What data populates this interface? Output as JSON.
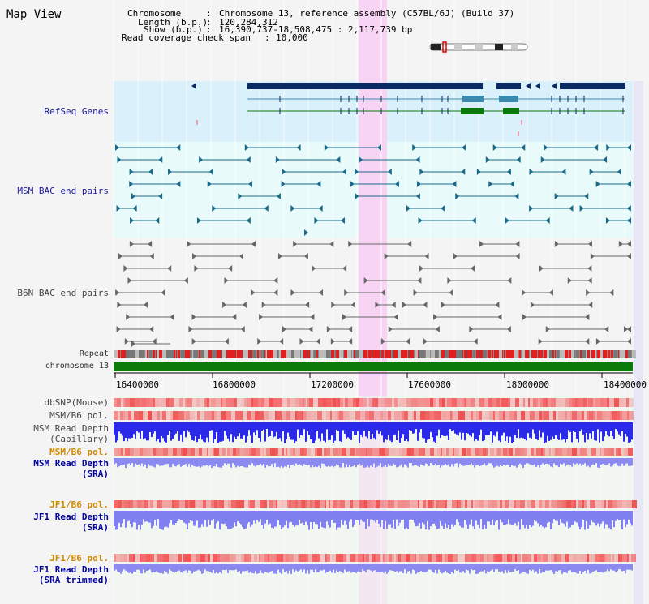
{
  "page_title": "Map View",
  "info": {
    "chromosome_key": "Chromosome",
    "chromosome_val": "Chromosome 13, reference assembly (C57BL/6J) (Build 37)",
    "length_key": "Length (b.p.)",
    "length_val": "120,284,312",
    "show_key": "Show (b.p.)",
    "show_val": "16,390,737-18,508,475 : 2,117,739 bp",
    "span_key": "Read coverage check span",
    "span_val": "10,000"
  },
  "tracks": {
    "refseq": "RefSeq Genes",
    "msm_bac": "MSM BAC end pairs",
    "b6n_bac": "B6N BAC end pairs",
    "repeat": "Repeat",
    "chromosome": "chromosome 13",
    "dbsnp": "dbSNP(Mouse)",
    "msm_b6_pol_1": "MSM/B6 pol.",
    "msm_depth_cap_1": "MSM Read Depth",
    "msm_depth_cap_2": "(Capillary)",
    "msm_b6_pol_2": "MSM/B6 pol.",
    "msm_depth_sra_1": "MSM Read Depth",
    "msm_depth_sra_2": "(SRA)",
    "jf1_b6_pol_1": "JF1/B6 pol.",
    "jf1_depth_sra_1": "JF1 Read Depth",
    "jf1_depth_sra_2": "(SRA)",
    "jf1_b6_pol_2": "JF1/B6 pol.",
    "jf1_depth_trim_1": "JF1 Read Depth",
    "jf1_depth_trim_2": "(SRA trimmed)"
  },
  "axis": {
    "ticks": [
      "16400000",
      "16800000",
      "17200000",
      "17600000",
      "18000000",
      "18400000"
    ]
  },
  "colors": {
    "refseq_bg": "#daf0fb",
    "msm_bg": "#e8fafa",
    "b6n_bg": "#f4f4f4",
    "highlight": "#f8d4f4",
    "navy_gene": "#0a2a66",
    "teal_gene": "#3a8ab0",
    "green_gene": "#0a7a0a",
    "chromosome_bar": "#0a7a0a",
    "repeat_red": "#e02020",
    "repeat_grey": "#777777",
    "pol_pink": "#f8a0a0",
    "depth_blue": "#2020e0",
    "depth_light": "#8080f0"
  }
}
